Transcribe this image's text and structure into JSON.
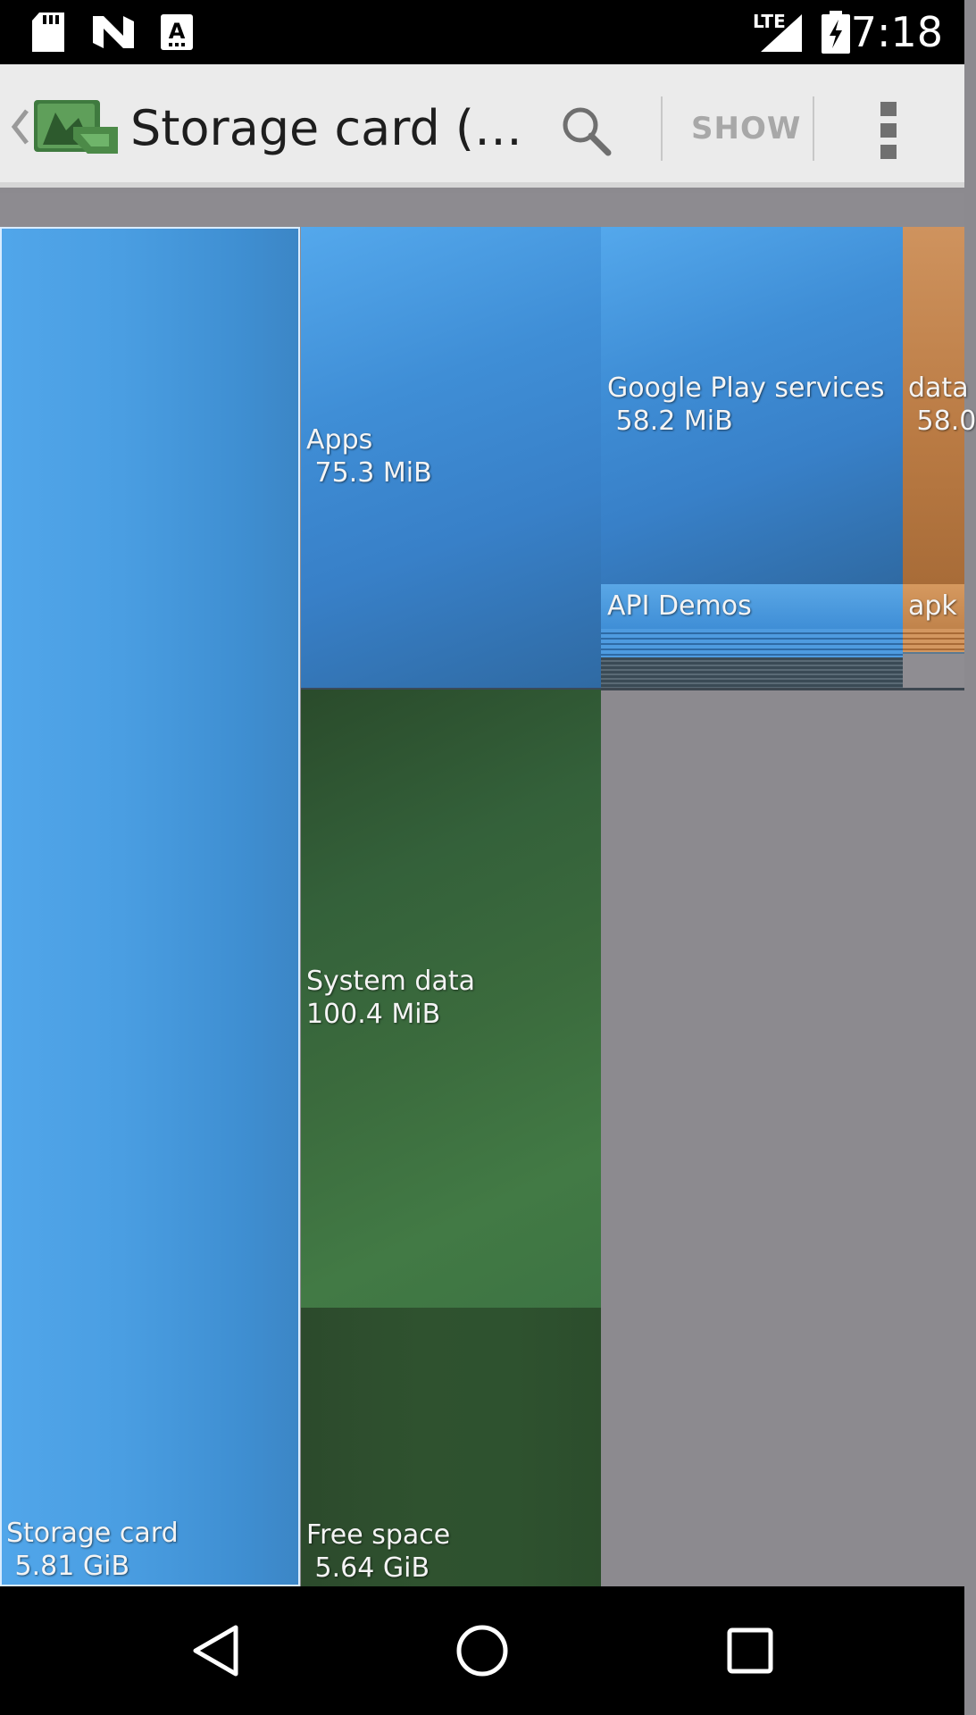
{
  "status_bar": {
    "time": "7:18",
    "network": "LTE",
    "icons": [
      "sd-card-icon",
      "n-logo-icon",
      "a-badge-icon",
      "signal-icon",
      "battery-charging-icon"
    ]
  },
  "action_bar": {
    "title": "Storage card (…",
    "show_label": "SHOW",
    "icons": [
      "back-chevron-icon",
      "app-logo-icon",
      "search-icon",
      "overflow-menu-icon"
    ]
  },
  "treemap": {
    "storage_card": {
      "name": "Storage card",
      "size": " 5.81 GiB"
    },
    "apps": {
      "name": "Apps",
      "size": " 75.3 MiB"
    },
    "system_data": {
      "name": "System data",
      "size": "100.4 MiB"
    },
    "free_space": {
      "name": "Free space",
      "size": " 5.64 GiB"
    },
    "google_play": {
      "name": "Google Play services",
      "size": " 58.2 MiB"
    },
    "data": {
      "name": "data",
      "size": " 58.0"
    },
    "api_demos": {
      "name": "API Demos"
    },
    "apk": {
      "name": "apk"
    }
  },
  "colors": {
    "blue": "#4a9ee2",
    "green": "#3b6b3d",
    "orange": "#b97a43",
    "gray": "#8c8a8f"
  },
  "nav_bar": {
    "icons": [
      "back-triangle-icon",
      "home-circle-icon",
      "recents-square-icon"
    ]
  }
}
